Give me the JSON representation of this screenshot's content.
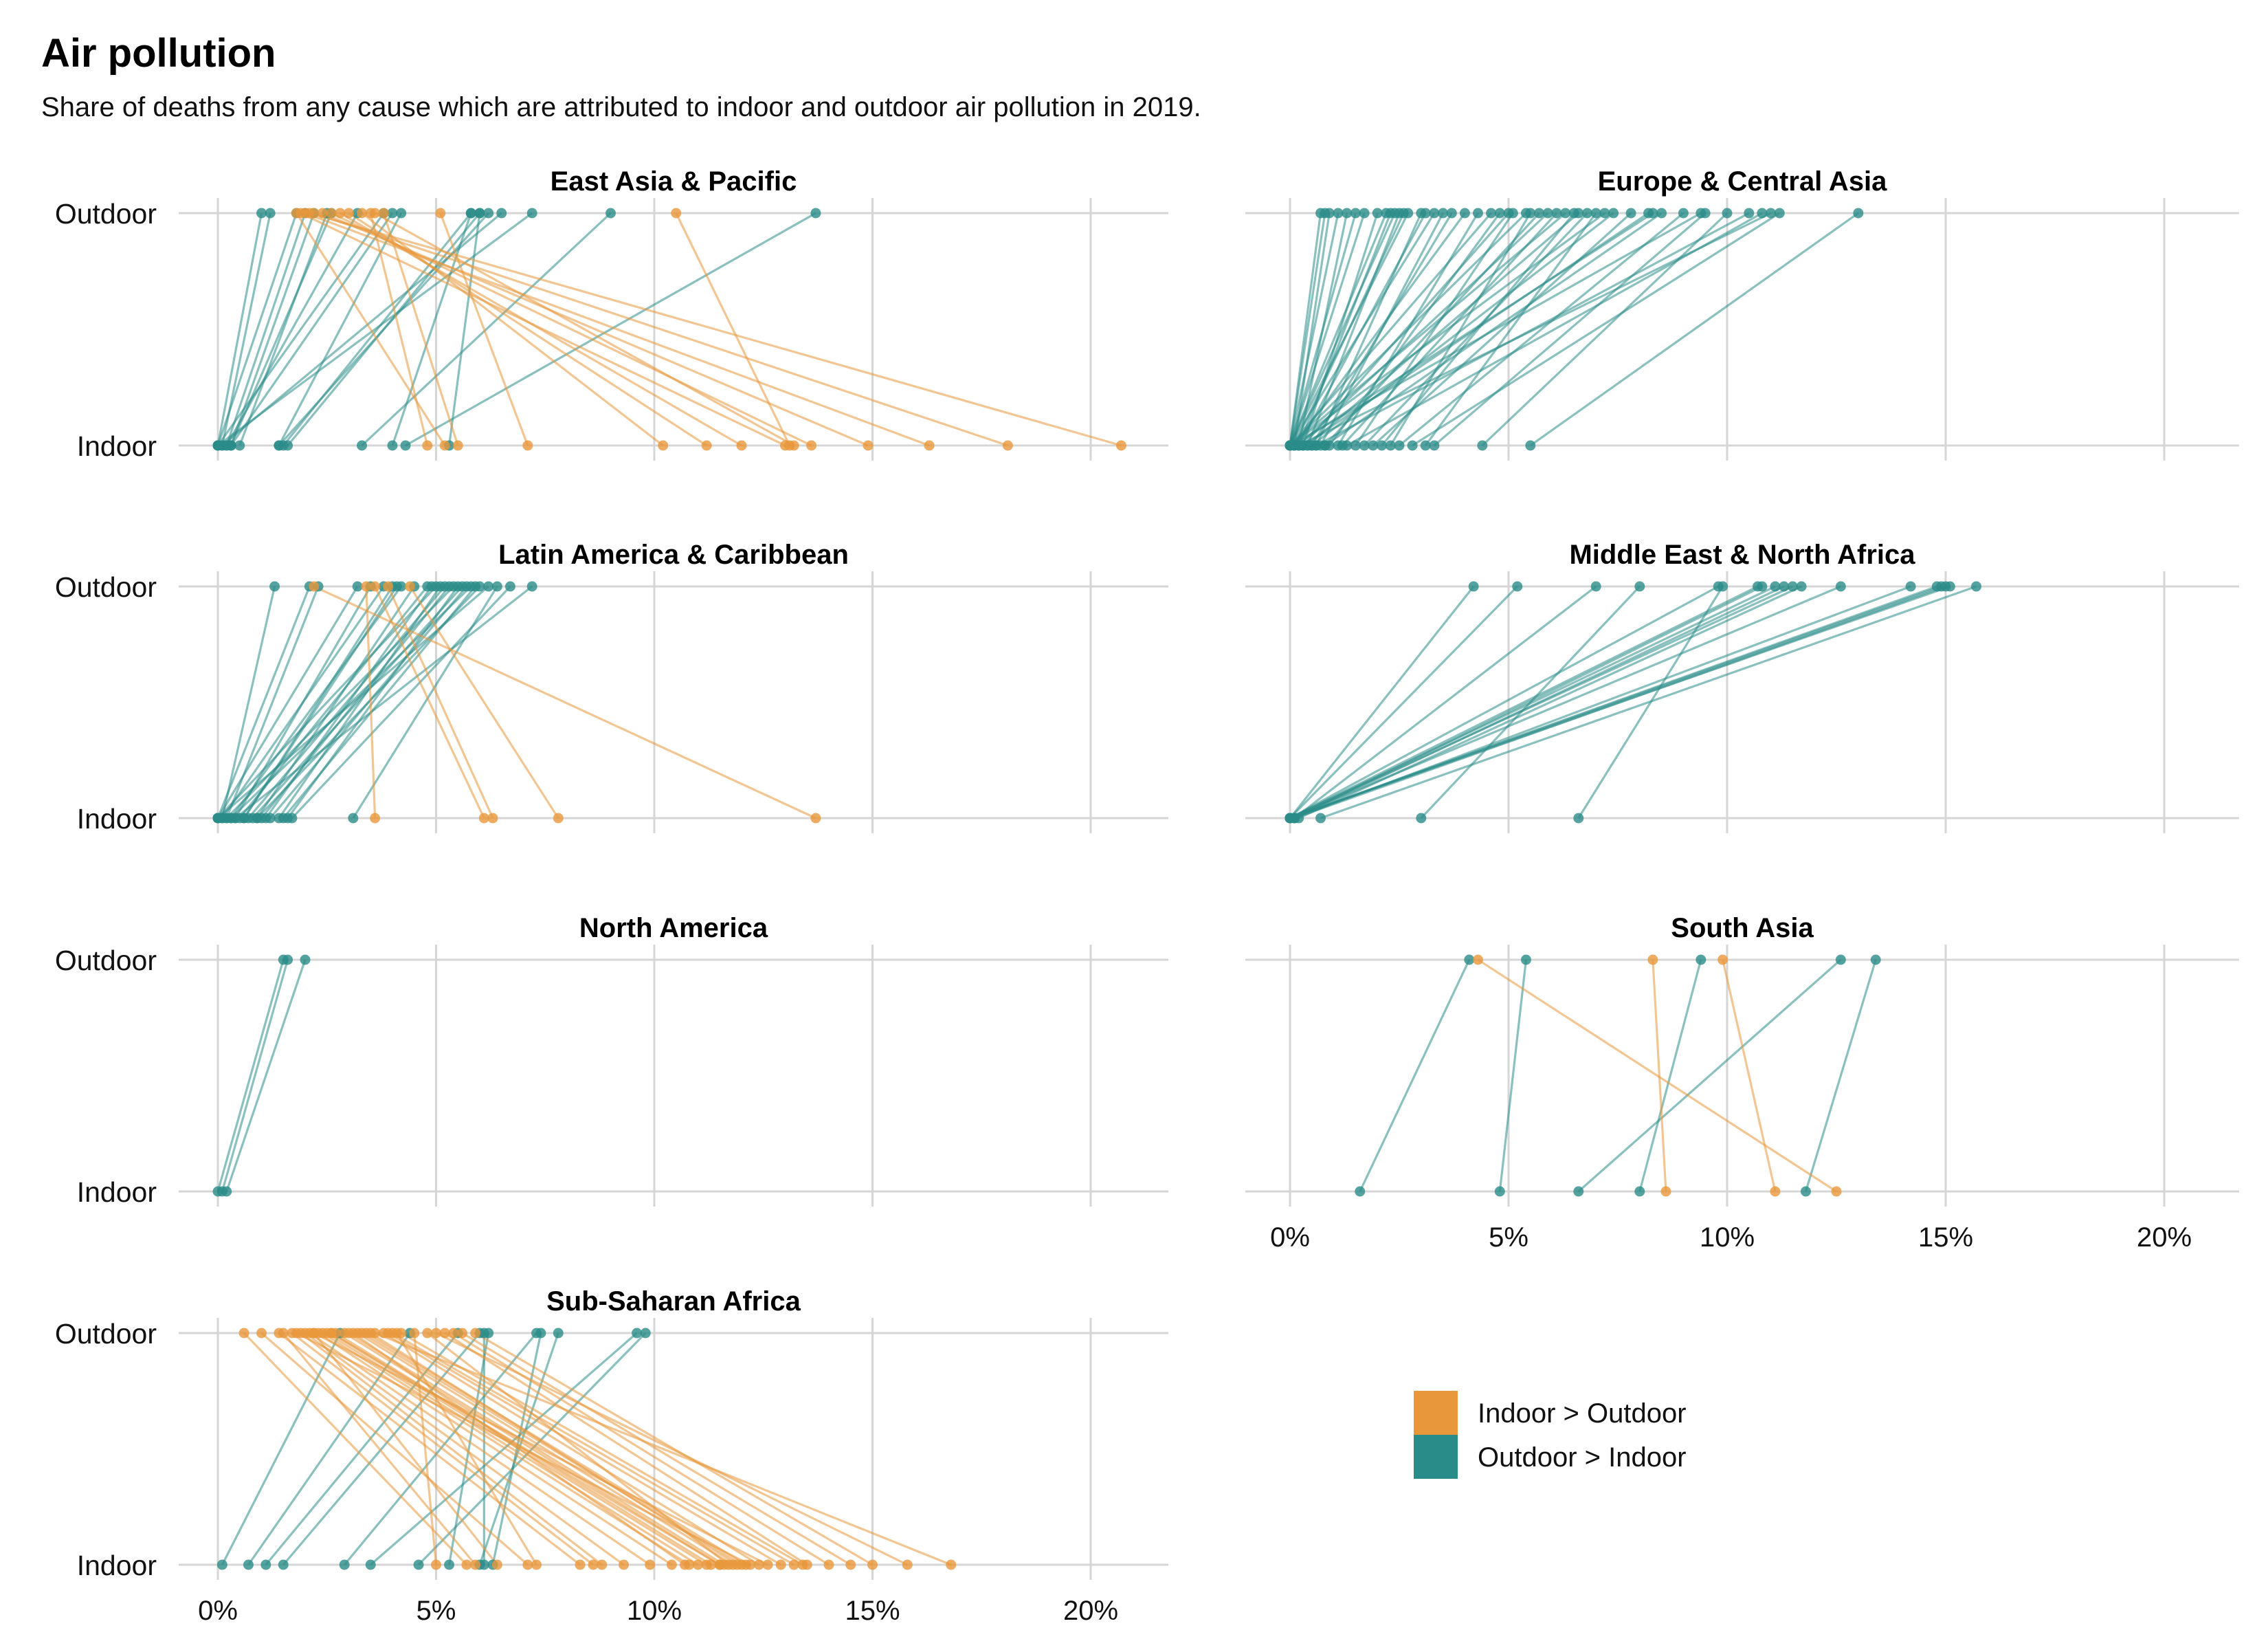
{
  "title": "Air pollution",
  "subtitle": "Share of deaths from any cause which are attributed to indoor and outdoor air pollution in 2019.",
  "colors": {
    "indoor_greater": "#E8973A",
    "outdoor_greater": "#2A8C88",
    "grid": "#D6D6D6"
  },
  "legend": {
    "indoor_greater": "Indoor > Outdoor",
    "outdoor_greater": "Outdoor > Indoor"
  },
  "chart_data": {
    "type": "slope",
    "x_axis": {
      "min": 0,
      "max": 20,
      "ticks": [
        0,
        5,
        10,
        15,
        20
      ],
      "tick_labels": [
        "0%",
        "5%",
        "10%",
        "15%",
        "20%"
      ]
    },
    "y_categories": [
      "Outdoor",
      "Indoor"
    ],
    "panels": [
      {
        "region": "East Asia & Pacific",
        "pairs": [
          [
            1.0,
            0.0
          ],
          [
            1.2,
            0.1
          ],
          [
            1.8,
            0.0
          ],
          [
            2.0,
            0.2
          ],
          [
            2.2,
            0.3
          ],
          [
            2.5,
            0.5
          ],
          [
            4.2,
            1.4
          ],
          [
            5.8,
            1.5
          ],
          [
            6.0,
            1.6
          ],
          [
            6.2,
            1.4
          ],
          [
            6.5,
            0.1
          ],
          [
            7.2,
            0.0
          ],
          [
            9.0,
            3.3
          ],
          [
            13.7,
            4.3
          ],
          [
            6.0,
            5.3
          ],
          [
            5.8,
            4.0
          ],
          [
            3.2,
            0.2
          ],
          [
            2.6,
            0.3
          ],
          [
            3.8,
            0.0
          ],
          [
            4.0,
            0.3
          ],
          [
            1.8,
            5.2
          ],
          [
            1.9,
            13.0
          ],
          [
            2.0,
            16.3
          ],
          [
            2.1,
            20.7
          ],
          [
            2.2,
            18.1
          ],
          [
            2.4,
            14.9
          ],
          [
            2.6,
            13.6
          ],
          [
            2.8,
            12.0
          ],
          [
            3.0,
            11.2
          ],
          [
            3.3,
            10.2
          ],
          [
            3.6,
            13.2
          ],
          [
            3.8,
            5.5
          ],
          [
            5.1,
            7.1
          ],
          [
            10.5,
            13.1
          ],
          [
            3.5,
            4.8
          ]
        ]
      },
      {
        "region": "Europe & Central Asia",
        "pairs": [
          [
            0.7,
            0.0
          ],
          [
            0.8,
            0.0
          ],
          [
            0.9,
            0.1
          ],
          [
            1.1,
            0.0
          ],
          [
            1.3,
            0.2
          ],
          [
            1.5,
            0.0
          ],
          [
            1.7,
            0.0
          ],
          [
            2.0,
            0.3
          ],
          [
            2.2,
            0.0
          ],
          [
            2.3,
            0.2
          ],
          [
            2.4,
            0.0
          ],
          [
            2.5,
            0.4
          ],
          [
            2.6,
            0.1
          ],
          [
            2.7,
            0.0
          ],
          [
            3.0,
            0.6
          ],
          [
            3.1,
            0.2
          ],
          [
            3.3,
            0.0
          ],
          [
            3.5,
            0.7
          ],
          [
            4.0,
            0.1
          ],
          [
            4.3,
            1.1
          ],
          [
            4.8,
            0.9
          ],
          [
            5.0,
            0.3
          ],
          [
            5.1,
            1.5
          ],
          [
            5.4,
            0.0
          ],
          [
            5.5,
            2.3
          ],
          [
            5.7,
            0.8
          ],
          [
            5.9,
            0.2
          ],
          [
            6.1,
            1.2
          ],
          [
            6.3,
            0.0
          ],
          [
            6.5,
            2.1
          ],
          [
            6.6,
            0.4
          ],
          [
            6.8,
            1.7
          ],
          [
            7.0,
            3.1
          ],
          [
            7.2,
            0.0
          ],
          [
            7.4,
            0.5
          ],
          [
            7.8,
            1.9
          ],
          [
            8.2,
            0.3
          ],
          [
            8.5,
            0.8
          ],
          [
            9.0,
            2.5
          ],
          [
            9.4,
            0.0
          ],
          [
            9.5,
            3.3
          ],
          [
            10.0,
            4.4
          ],
          [
            10.5,
            0.6
          ],
          [
            10.8,
            1.3
          ],
          [
            11.0,
            0.2
          ],
          [
            11.2,
            2.8
          ],
          [
            13.0,
            5.5
          ],
          [
            8.3,
            0.1
          ],
          [
            4.6,
            0.0
          ],
          [
            3.7,
            0.5
          ]
        ]
      },
      {
        "region": "Latin America & Caribbean",
        "pairs": [
          [
            1.3,
            0.1
          ],
          [
            2.1,
            0.0
          ],
          [
            2.3,
            0.2
          ],
          [
            3.2,
            0.0
          ],
          [
            3.5,
            0.4
          ],
          [
            3.8,
            0.1
          ],
          [
            4.0,
            0.6
          ],
          [
            4.2,
            0.3
          ],
          [
            4.5,
            0.9
          ],
          [
            4.8,
            0.5
          ],
          [
            4.9,
            1.1
          ],
          [
            5.0,
            0.0
          ],
          [
            5.1,
            1.4
          ],
          [
            5.2,
            0.7
          ],
          [
            5.4,
            0.2
          ],
          [
            5.5,
            1.6
          ],
          [
            5.6,
            0.8
          ],
          [
            5.7,
            1.2
          ],
          [
            5.8,
            0.3
          ],
          [
            5.9,
            1.5
          ],
          [
            6.0,
            0.9
          ],
          [
            6.2,
            0.0
          ],
          [
            6.4,
            3.1
          ],
          [
            6.7,
            1.7
          ],
          [
            7.2,
            0.4
          ],
          [
            5.3,
            1.0
          ],
          [
            4.1,
            0.6
          ],
          [
            3.4,
            3.6
          ],
          [
            3.6,
            6.1
          ],
          [
            3.9,
            6.3
          ],
          [
            4.4,
            7.8
          ],
          [
            2.2,
            13.7
          ]
        ]
      },
      {
        "region": "Middle East & North Africa",
        "pairs": [
          [
            4.2,
            0.0
          ],
          [
            5.2,
            0.0
          ],
          [
            7.0,
            0.1
          ],
          [
            8.0,
            3.0
          ],
          [
            9.8,
            0.0
          ],
          [
            9.9,
            6.6
          ],
          [
            10.7,
            0.0
          ],
          [
            10.8,
            0.1
          ],
          [
            11.1,
            0.0
          ],
          [
            11.3,
            0.1
          ],
          [
            11.5,
            0.0
          ],
          [
            11.7,
            0.2
          ],
          [
            12.6,
            0.0
          ],
          [
            14.2,
            0.1
          ],
          [
            14.8,
            0.0
          ],
          [
            14.9,
            0.0
          ],
          [
            15.0,
            0.1
          ],
          [
            15.1,
            0.0
          ],
          [
            15.7,
            0.7
          ]
        ]
      },
      {
        "region": "North America",
        "pairs": [
          [
            1.5,
            0.0
          ],
          [
            1.6,
            0.1
          ],
          [
            2.0,
            0.2
          ]
        ]
      },
      {
        "region": "South Asia",
        "pairs": [
          [
            4.1,
            1.6
          ],
          [
            5.4,
            4.8
          ],
          [
            9.4,
            8.0
          ],
          [
            12.6,
            6.6
          ],
          [
            13.4,
            11.8
          ],
          [
            4.3,
            12.5
          ],
          [
            8.3,
            8.6
          ],
          [
            9.9,
            11.1
          ]
        ]
      },
      {
        "region": "Sub-Saharan Africa",
        "pairs": [
          [
            2.8,
            0.1
          ],
          [
            4.4,
            0.7
          ],
          [
            5.5,
            1.1
          ],
          [
            6.0,
            1.5
          ],
          [
            7.3,
            2.9
          ],
          [
            9.6,
            3.5
          ],
          [
            9.8,
            4.6
          ],
          [
            6.2,
            5.3
          ],
          [
            7.8,
            6.0
          ],
          [
            6.1,
            6.1
          ],
          [
            7.4,
            6.3
          ],
          [
            4.5,
            5.0
          ],
          [
            0.6,
            5.7
          ],
          [
            1.0,
            7.1
          ],
          [
            1.4,
            8.3
          ],
          [
            1.7,
            8.6
          ],
          [
            1.9,
            8.8
          ],
          [
            2.0,
            9.3
          ],
          [
            2.1,
            9.9
          ],
          [
            2.3,
            10.4
          ],
          [
            2.4,
            10.8
          ],
          [
            2.5,
            11.0
          ],
          [
            2.6,
            11.2
          ],
          [
            2.7,
            11.3
          ],
          [
            2.9,
            11.5
          ],
          [
            3.0,
            11.6
          ],
          [
            3.2,
            11.8
          ],
          [
            3.3,
            12.0
          ],
          [
            3.4,
            12.1
          ],
          [
            3.8,
            12.4
          ],
          [
            3.9,
            12.9
          ],
          [
            4.0,
            13.2
          ],
          [
            4.2,
            13.4
          ],
          [
            5.2,
            13.5
          ],
          [
            5.4,
            14.0
          ],
          [
            5.6,
            14.5
          ],
          [
            5.9,
            15.0
          ],
          [
            5.0,
            15.8
          ],
          [
            3.6,
            16.8
          ],
          [
            2.2,
            12.6
          ],
          [
            1.8,
            12.2
          ],
          [
            3.5,
            11.9
          ],
          [
            4.8,
            11.7
          ],
          [
            2.6,
            11.5
          ],
          [
            3.1,
            10.7
          ],
          [
            4.1,
            7.3
          ],
          [
            2.2,
            6.4
          ],
          [
            1.5,
            5.9
          ]
        ]
      }
    ]
  }
}
